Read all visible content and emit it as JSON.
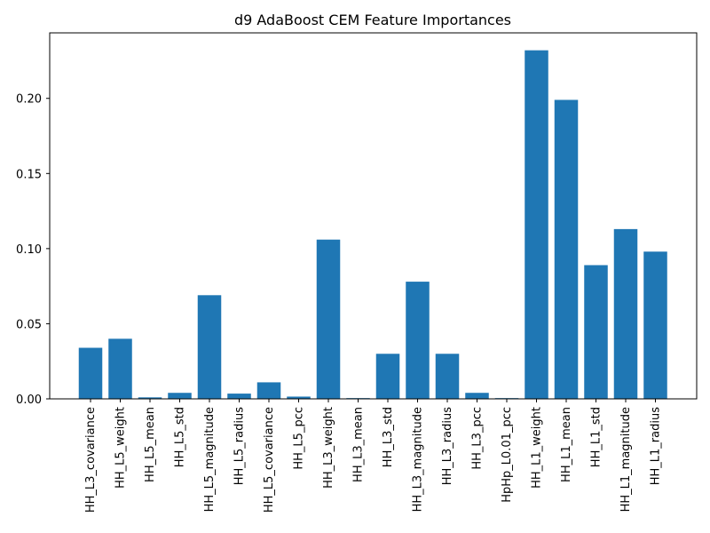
{
  "chart_data": {
    "type": "bar",
    "title": "d9 AdaBoost CEM Feature Importances",
    "xlabel": "",
    "ylabel": "",
    "categories": [
      "HH_L3_covariance",
      "HH_L5_weight",
      "HH_L5_mean",
      "HH_L5_std",
      "HH_L5_magnitude",
      "HH_L5_radius",
      "HH_L5_covariance",
      "HH_L5_pcc",
      "HH_L3_weight",
      "HH_L3_mean",
      "HH_L3_std",
      "HH_L3_magnitude",
      "HH_L3_radius",
      "HH_L3_pcc",
      "HpHp_L0.01_pcc",
      "HH_L1_weight",
      "HH_L1_mean",
      "HH_L1_std",
      "HH_L1_magnitude",
      "HH_L1_radius"
    ],
    "values": [
      0.034,
      0.04,
      0.001,
      0.004,
      0.069,
      0.0035,
      0.011,
      0.0015,
      0.106,
      0.0005,
      0.03,
      0.078,
      0.03,
      0.004,
      0.0005,
      0.232,
      0.199,
      0.089,
      0.113,
      0.098
    ],
    "ylim": [
      0,
      0.2436
    ],
    "yticks": [
      0.0,
      0.05,
      0.1,
      0.15,
      0.2
    ],
    "ytick_labels": [
      "0.00",
      "0.05",
      "0.10",
      "0.15",
      "0.20"
    ],
    "grid": false,
    "bar_color": "#1f77b4"
  }
}
